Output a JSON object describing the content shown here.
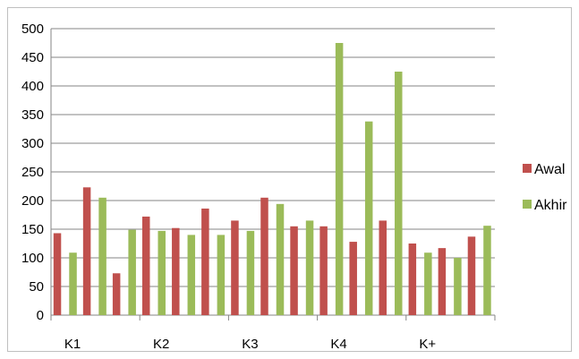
{
  "chart_data": {
    "type": "bar",
    "categories": [
      "K1",
      "",
      "",
      "K2",
      "",
      "",
      "K3",
      "",
      "",
      "K4",
      "",
      "",
      "K+",
      "",
      ""
    ],
    "category_labels": [
      "K1",
      "K2",
      "K3",
      "K4",
      "K+"
    ],
    "series": [
      {
        "name": "Awal",
        "color": "#c0504d",
        "values": [
          143,
          223,
          73,
          172,
          152,
          186,
          165,
          205,
          155,
          155,
          128,
          165,
          125,
          117,
          137
        ]
      },
      {
        "name": "Akhir",
        "color": "#9bbb59",
        "values": [
          109,
          205,
          149,
          147,
          140,
          140,
          147,
          194,
          165,
          475,
          338,
          425,
          109,
          100,
          156
        ]
      }
    ],
    "ylim": [
      0,
      500
    ],
    "yticks": [
      "0",
      "50",
      "100",
      "150",
      "200",
      "250",
      "300",
      "350",
      "400",
      "450",
      "500"
    ],
    "grid": true,
    "legend": "right"
  }
}
